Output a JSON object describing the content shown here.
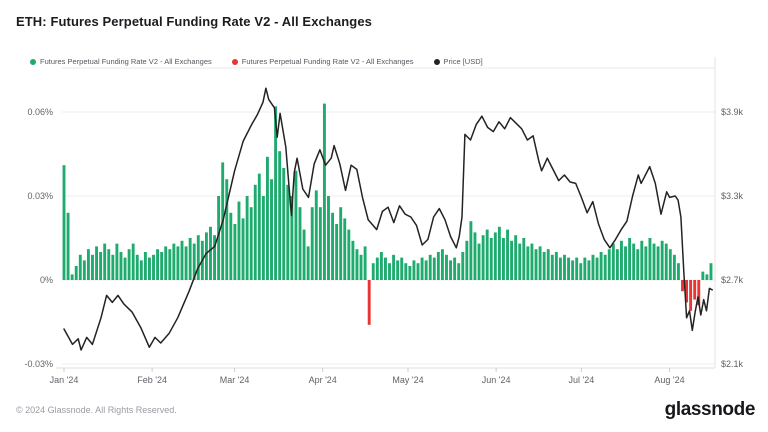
{
  "header": {
    "title": "ETH: Futures Perpetual Funding Rate V2 - All Exchanges"
  },
  "legend": {
    "items": [
      {
        "label": "Futures Perpetual Funding Rate V2 - All Exchanges",
        "color": "#1fab6e"
      },
      {
        "label": "Futures Perpetual Funding Rate V2 - All Exchanges",
        "color": "#e93434"
      },
      {
        "label": "Price [USD]",
        "color": "#232323"
      }
    ]
  },
  "chart_data": {
    "type": "bar",
    "title": "ETH: Futures Perpetual Funding Rate V2 - All Exchanges",
    "legend_position": "top-left",
    "grid": "horizontal",
    "x_axis": {
      "start": "2024-01-01",
      "range_days": 229,
      "tick_labels": [
        "Jan '24",
        "Feb '24",
        "Mar '24",
        "Apr '24",
        "May '24",
        "Jun '24",
        "Jul '24",
        "Aug '24"
      ],
      "tick_day_offsets": [
        0,
        31,
        60,
        91,
        121,
        152,
        182,
        213
      ]
    },
    "y_left": {
      "name": "Funding rate",
      "unit": "%",
      "tick_labels": [
        "0.06%",
        "0.03%",
        "0%",
        "-0.03%"
      ],
      "tick_values": [
        0.06,
        0.03,
        0,
        -0.03
      ],
      "range": [
        -0.0315,
        0.0757
      ]
    },
    "y_right": {
      "name": "Price [USD]",
      "unit": "USD",
      "tick_labels": [
        "$3.9k",
        "$3.3k",
        "$2.7k",
        "$2.1k"
      ],
      "tick_values": [
        3900,
        3300,
        2700,
        2100
      ],
      "range": [
        2071,
        4214
      ]
    },
    "series": [
      {
        "name": "Futures Perpetual Funding Rate V2 - All Exchanges",
        "type": "bar",
        "unit": "%",
        "color_positive": "#1fab6e",
        "color_negative": "#e93434",
        "sample_interval_days": 1.43125,
        "values": [
          0.041,
          0.024,
          0.002,
          0.005,
          0.009,
          0.007,
          0.011,
          0.009,
          0.012,
          0.01,
          0.013,
          0.011,
          0.009,
          0.013,
          0.01,
          0.008,
          0.011,
          0.013,
          0.009,
          0.007,
          0.01,
          0.008,
          0.009,
          0.011,
          0.01,
          0.012,
          0.011,
          0.013,
          0.012,
          0.014,
          0.012,
          0.015,
          0.013,
          0.016,
          0.014,
          0.017,
          0.019,
          0.016,
          0.03,
          0.042,
          0.036,
          0.024,
          0.02,
          0.028,
          0.022,
          0.03,
          0.026,
          0.034,
          0.038,
          0.03,
          0.044,
          0.036,
          0.062,
          0.046,
          0.04,
          0.034,
          0.03,
          0.039,
          0.026,
          0.018,
          0.012,
          0.026,
          0.032,
          0.026,
          0.063,
          0.03,
          0.024,
          0.02,
          0.026,
          0.022,
          0.018,
          0.014,
          0.011,
          0.009,
          0.012,
          -0.016,
          0.006,
          0.008,
          0.01,
          0.008,
          0.006,
          0.009,
          0.007,
          0.008,
          0.006,
          0.005,
          0.007,
          0.006,
          0.008,
          0.007,
          0.009,
          0.008,
          0.01,
          0.011,
          0.009,
          0.007,
          0.008,
          0.006,
          0.01,
          0.014,
          0.021,
          0.017,
          0.013,
          0.016,
          0.018,
          0.015,
          0.017,
          0.019,
          0.015,
          0.018,
          0.014,
          0.016,
          0.013,
          0.015,
          0.012,
          0.013,
          0.011,
          0.012,
          0.01,
          0.011,
          0.009,
          0.01,
          0.008,
          0.009,
          0.008,
          0.007,
          0.008,
          0.006,
          0.008,
          0.007,
          0.009,
          0.008,
          0.01,
          0.009,
          0.011,
          0.013,
          0.011,
          0.014,
          0.012,
          0.015,
          0.013,
          0.011,
          0.014,
          0.012,
          0.015,
          0.013,
          0.012,
          0.014,
          0.013,
          0.011,
          0.009,
          0.006,
          -0.004,
          -0.008,
          -0.011,
          -0.007,
          -0.009,
          0.003,
          0.002,
          0.006
        ]
      },
      {
        "name": "Price [USD]",
        "type": "line",
        "unit": "USD",
        "color": "#232323",
        "points": [
          [
            0,
            2350
          ],
          [
            3,
            2240
          ],
          [
            5,
            2280
          ],
          [
            6,
            2200
          ],
          [
            8,
            2290
          ],
          [
            10,
            2240
          ],
          [
            13,
            2430
          ],
          [
            15,
            2590
          ],
          [
            17,
            2540
          ],
          [
            19,
            2590
          ],
          [
            21,
            2530
          ],
          [
            24,
            2470
          ],
          [
            27,
            2360
          ],
          [
            30,
            2220
          ],
          [
            32,
            2290
          ],
          [
            34,
            2250
          ],
          [
            37,
            2320
          ],
          [
            40,
            2430
          ],
          [
            44,
            2620
          ],
          [
            47,
            2780
          ],
          [
            50,
            2890
          ],
          [
            53,
            2940
          ],
          [
            56,
            3130
          ],
          [
            60,
            3480
          ],
          [
            63,
            3690
          ],
          [
            66,
            3810
          ],
          [
            68,
            3880
          ],
          [
            70,
            3970
          ],
          [
            71,
            4070
          ],
          [
            72,
            3990
          ],
          [
            74,
            3930
          ],
          [
            75,
            3720
          ],
          [
            76,
            3890
          ],
          [
            78,
            3650
          ],
          [
            80,
            3160
          ],
          [
            81,
            3470
          ],
          [
            82,
            3570
          ],
          [
            84,
            3350
          ],
          [
            86,
            3290
          ],
          [
            88,
            3530
          ],
          [
            90,
            3630
          ],
          [
            92,
            3520
          ],
          [
            94,
            3570
          ],
          [
            95,
            3660
          ],
          [
            97,
            3530
          ],
          [
            99,
            3340
          ],
          [
            101,
            3520
          ],
          [
            103,
            3490
          ],
          [
            105,
            3290
          ],
          [
            107,
            3130
          ],
          [
            110,
            3060
          ],
          [
            112,
            3190
          ],
          [
            114,
            3220
          ],
          [
            116,
            3110
          ],
          [
            118,
            3230
          ],
          [
            120,
            3170
          ],
          [
            122,
            3150
          ],
          [
            124,
            3090
          ],
          [
            126,
            2950
          ],
          [
            128,
            2990
          ],
          [
            130,
            3150
          ],
          [
            132,
            3210
          ],
          [
            134,
            3130
          ],
          [
            136,
            3010
          ],
          [
            138,
            2930
          ],
          [
            139,
            3010
          ],
          [
            140,
            3150
          ],
          [
            141,
            3740
          ],
          [
            143,
            3700
          ],
          [
            145,
            3810
          ],
          [
            147,
            3870
          ],
          [
            149,
            3790
          ],
          [
            151,
            3760
          ],
          [
            153,
            3830
          ],
          [
            155,
            3780
          ],
          [
            157,
            3860
          ],
          [
            159,
            3820
          ],
          [
            161,
            3780
          ],
          [
            163,
            3700
          ],
          [
            165,
            3730
          ],
          [
            167,
            3550
          ],
          [
            168,
            3480
          ],
          [
            170,
            3570
          ],
          [
            172,
            3490
          ],
          [
            174,
            3410
          ],
          [
            176,
            3450
          ],
          [
            178,
            3400
          ],
          [
            180,
            3390
          ],
          [
            182,
            3290
          ],
          [
            184,
            3180
          ],
          [
            186,
            3260
          ],
          [
            188,
            3100
          ],
          [
            190,
            2990
          ],
          [
            192,
            2930
          ],
          [
            194,
            2990
          ],
          [
            196,
            3060
          ],
          [
            198,
            3120
          ],
          [
            200,
            3300
          ],
          [
            202,
            3450
          ],
          [
            203,
            3390
          ],
          [
            204,
            3430
          ],
          [
            206,
            3510
          ],
          [
            208,
            3390
          ],
          [
            210,
            3170
          ],
          [
            212,
            3330
          ],
          [
            213,
            3290
          ],
          [
            215,
            3300
          ],
          [
            216,
            3270
          ],
          [
            217,
            3150
          ],
          [
            218,
            2760
          ],
          [
            219,
            2430
          ],
          [
            220,
            2480
          ],
          [
            221,
            2340
          ],
          [
            222,
            2470
          ],
          [
            223,
            2580
          ],
          [
            224,
            2450
          ],
          [
            225,
            2560
          ],
          [
            226,
            2480
          ],
          [
            227,
            2640
          ],
          [
            228,
            2630
          ]
        ]
      }
    ]
  },
  "footer": {
    "copyright": "© 2024 Glassnode. All Rights Reserved.",
    "logo_text": "glassnode"
  }
}
